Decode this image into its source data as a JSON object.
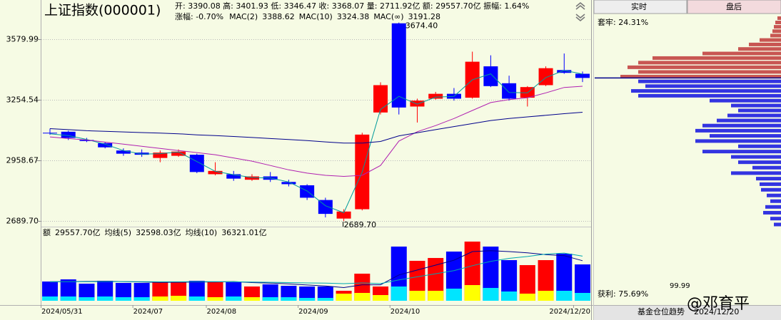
{
  "header": {
    "title": "上证指数(000001)",
    "quote_line": "开: 3390.08 高: 3401.93 低: 3346.47 收: 3368.07 量: 2711.92亿 额: 29557.70亿 振幅: 1.64%",
    "change": "涨幅: -0.70%"
  },
  "chart_data": [
    {
      "type": "candlestick",
      "log": true,
      "grid": true,
      "categories": [
        "2024/05/31",
        null,
        null,
        null,
        null,
        "2024/07",
        null,
        null,
        null,
        "2024/08",
        null,
        null,
        null,
        null,
        "2024/09",
        null,
        null,
        null,
        null,
        "2024/10",
        null,
        null,
        null,
        null,
        null,
        null,
        null,
        null,
        null,
        "2024/12/20"
      ],
      "open": [
        3090,
        3095,
        3055,
        3040,
        3005,
        2995,
        2970,
        2980,
        2985,
        2895,
        2895,
        2870,
        2885,
        2860,
        2845,
        2780,
        2700,
        2740,
        3190,
        3670,
        3220,
        3260,
        3285,
        3265,
        3430,
        3340,
        3265,
        3330,
        3410,
        3390.08
      ],
      "high": [
        3110,
        3100,
        3065,
        3045,
        3015,
        3010,
        3005,
        3010,
        2990,
        2950,
        2910,
        2895,
        2905,
        2870,
        2850,
        2790,
        2740,
        3090,
        3345,
        3674.4,
        3260,
        3295,
        3315,
        3510,
        3490,
        3380,
        3325,
        3430,
        3500,
        3401.93
      ],
      "low": [
        3080,
        3055,
        3045,
        3015,
        2980,
        2975,
        2950,
        2975,
        2900,
        2890,
        2865,
        2865,
        2860,
        2840,
        2780,
        2705,
        2689.7,
        2735,
        3180,
        3180,
        3140,
        3255,
        3250,
        3260,
        3320,
        3250,
        3220,
        3325,
        3390,
        3346.47
      ],
      "close": [
        3087,
        3065,
        3050,
        3020,
        2990,
        2985,
        2995,
        3000,
        2905,
        2910,
        2875,
        2885,
        2870,
        2850,
        2790,
        2720,
        2730,
        3081,
        3330,
        3215,
        3250,
        3285,
        3260,
        3455,
        3325,
        3260,
        3320,
        3420,
        3395,
        3368.07
      ],
      "up_color": "#ff0000",
      "down_color": "#0000ff",
      "series": [
        {
          "name": "MAC(2)",
          "color": "#009a9a",
          "values": [
            3085,
            3076,
            3058,
            3035,
            3005,
            2988,
            2990,
            2998,
            2953,
            2908,
            2893,
            2880,
            2878,
            2860,
            2820,
            2755,
            2725,
            2905,
            3205,
            3272,
            3232,
            3268,
            3272,
            3358,
            3390,
            3292,
            3290,
            3370,
            3408,
            3388.62
          ]
        },
        {
          "name": "MAC(10)",
          "color": "#b020b0",
          "values": [
            3070,
            3062,
            3055,
            3045,
            3035,
            3025,
            3015,
            3005,
            2995,
            2985,
            2970,
            2955,
            2935,
            2915,
            2900,
            2890,
            2885,
            2890,
            2935,
            3050,
            3095,
            3125,
            3160,
            3200,
            3240,
            3255,
            3265,
            3290,
            3318,
            3324.38
          ]
        },
        {
          "name": "MAC(∞)",
          "color": "#00008b",
          "values": [
            3110,
            3105,
            3100,
            3097,
            3094,
            3091,
            3088,
            3085,
            3080,
            3076,
            3072,
            3067,
            3062,
            3057,
            3052,
            3046,
            3040,
            3040,
            3048,
            3075,
            3090,
            3105,
            3120,
            3135,
            3150,
            3160,
            3168,
            3176,
            3184,
            3191.28
          ]
        }
      ],
      "ylim": [
        2666,
        3731
      ],
      "yticks": [
        3579.99,
        3254.54,
        2958.67,
        {
          "value": 2689.7,
          "label": "2689.70"
        }
      ],
      "annotations": [
        "3674.40",
        "2689.70"
      ]
    },
    {
      "type": "bar",
      "series": [
        {
          "name": "额",
          "color": "#000000",
          "values": [
            15660,
            17400,
            13920,
            16240,
            14500,
            14500,
            15080,
            15080,
            16240,
            15660,
            15080,
            11600,
            13340,
            12180,
            11600,
            11600,
            8120,
            22040,
            11600,
            44080,
            32480,
            34800,
            40020,
            48140,
            44080,
            33060,
            29000,
            33060,
            38280,
            29557.7
          ],
          "value_labels": [
            null,
            null,
            null,
            null,
            null,
            null,
            null,
            null,
            null,
            null,
            null,
            null,
            null,
            null,
            null,
            null,
            null,
            null,
            null,
            null,
            null,
            null,
            null,
            null,
            null,
            null,
            null,
            null,
            null,
            "29557.70亿"
          ]
        },
        {
          "name": "均线(5)",
          "color": "#00008b",
          "line": true,
          "values": [
            15500,
            15600,
            15700,
            15900,
            15600,
            15300,
            14900,
            15100,
            15300,
            15300,
            15600,
            14800,
            14400,
            13700,
            12800,
            12000,
            10700,
            13000,
            13000,
            21000,
            25000,
            29000,
            33000,
            40000,
            40700,
            40000,
            39000,
            37500,
            36700,
            32598.03
          ],
          "value_labels": [
            null,
            null,
            null,
            null,
            null,
            null,
            null,
            null,
            null,
            null,
            null,
            null,
            null,
            null,
            null,
            null,
            null,
            null,
            null,
            null,
            null,
            null,
            null,
            null,
            null,
            null,
            null,
            null,
            null,
            "32598.03亿"
          ]
        },
        {
          "name": "均线(10)",
          "color": "#00a8b0",
          "line": true,
          "values": [
            15400,
            15500,
            15500,
            15600,
            15600,
            15500,
            15400,
            15400,
            15500,
            15500,
            15400,
            15200,
            15000,
            14800,
            14500,
            14300,
            13900,
            14500,
            14000,
            17000,
            19500,
            22000,
            24500,
            28500,
            32000,
            34500,
            36000,
            38000,
            38800,
            36321.01
          ],
          "value_labels": [
            null,
            null,
            null,
            null,
            null,
            null,
            null,
            null,
            null,
            null,
            null,
            null,
            null,
            null,
            null,
            null,
            null,
            null,
            null,
            null,
            null,
            null,
            null,
            null,
            null,
            null,
            null,
            null,
            null,
            "36321.01亿"
          ]
        }
      ],
      "inner_values": [
        3480,
        3480,
        2900,
        3480,
        2900,
        2900,
        3480,
        4060,
        3480,
        2900,
        3480,
        2900,
        2900,
        2900,
        2320,
        2320,
        5800,
        6380,
        4640,
        11600,
        8120,
        8120,
        9860,
        12760,
        10440,
        7540,
        5800,
        8120,
        8120,
        6380
      ],
      "inner_up_color": "#ffff00",
      "inner_down_color": "#00e5ff",
      "ylim": [
        0,
        51600
      ]
    },
    {
      "type": "chip",
      "log": true,
      "ylim": [
        2666,
        3731
      ],
      "xlim": [
        0,
        260
      ],
      "prices": [
        3700,
        3675,
        3650,
        3625,
        3600,
        3575,
        3550,
        3525,
        3500,
        3475,
        3450,
        3425,
        3400,
        3375,
        3350,
        3325,
        3300,
        3275,
        3250,
        3225,
        3200,
        3175,
        3150,
        3125,
        3100,
        3075,
        3050,
        3025,
        3000,
        2975,
        2950,
        2925,
        2900,
        2875,
        2850,
        2825,
        2800,
        2775,
        2750,
        2725,
        2700,
        2675
      ],
      "values": [
        5,
        8,
        10,
        12,
        15,
        30,
        45,
        60,
        110,
        180,
        200,
        215,
        200,
        225,
        200,
        190,
        210,
        200,
        100,
        70,
        60,
        75,
        90,
        110,
        120,
        100,
        120,
        60,
        110,
        70,
        60,
        40,
        70,
        35,
        30,
        28,
        20,
        15,
        22,
        25,
        15,
        10
      ],
      "trapped_color": "#c03838",
      "profit_color": "#1010e0",
      "line_color": "#00008b"
    }
  ],
  "side_panel": {
    "tabs": [
      "实时",
      "盘后"
    ],
    "trapped": "套牢: 24.31%",
    "profit": "获利: 75.69%",
    "peak": "99.99",
    "footer_title": "基金仓位趋势",
    "footer_date": "2024/12/20"
  },
  "watermark": "@邓育平"
}
